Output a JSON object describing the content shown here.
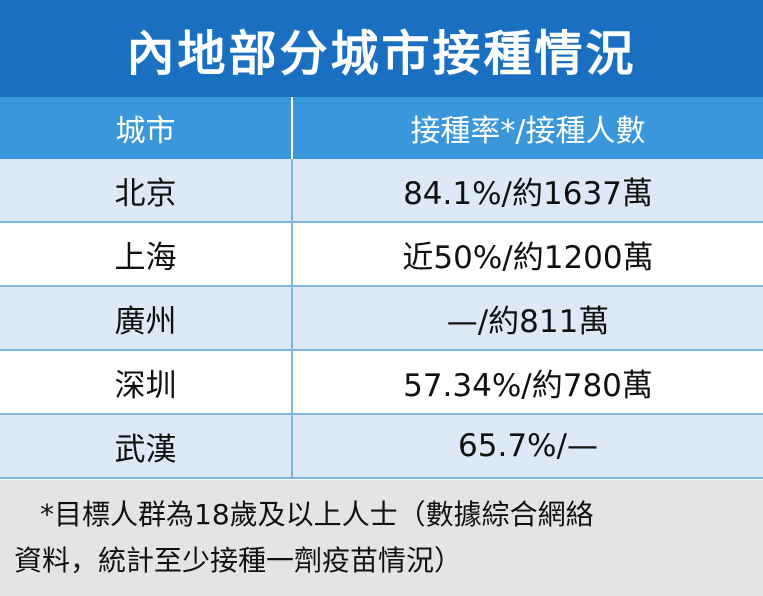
{
  "title": "內地部分城市接種情況",
  "table": {
    "headers": [
      "城市",
      "接種率*/接種人數"
    ],
    "rows": [
      [
        "北京",
        "84.1%/約1637萬"
      ],
      [
        "上海",
        "近50%/約1200萬"
      ],
      [
        "廣州",
        "—/約811萬"
      ],
      [
        "深圳",
        "57.34%/約780萬"
      ],
      [
        "武漢",
        "65.7%/—"
      ]
    ]
  },
  "footnote": {
    "line1": "*目標人群為18歲及以上人士（數據綜合網絡",
    "line2": "資料，統計至少接種一劑疫苗情況）"
  },
  "colors": {
    "title_bg": "#1a6fc1",
    "header_bg": "#3a97db",
    "row_alt_bg": "#dde9f7",
    "footnote_bg": "#e4e4e4"
  }
}
